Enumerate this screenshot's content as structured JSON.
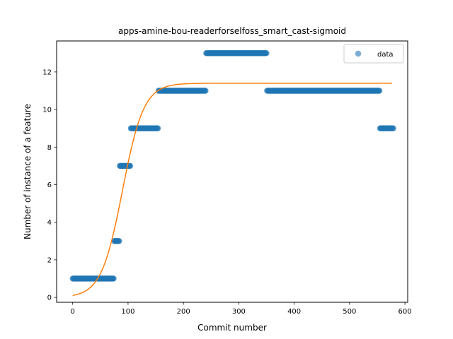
{
  "chart_data": {
    "type": "scatter",
    "title": "apps-amine-bou-readerforselfoss_smart_cast-sigmoid",
    "xlabel": "Commit number",
    "ylabel": "Number of instance of a feature",
    "xlim": [
      -29,
      605
    ],
    "ylim": [
      -0.26,
      13.65
    ],
    "xticks": [
      0,
      100,
      200,
      300,
      400,
      500,
      600
    ],
    "yticks": [
      0,
      2,
      4,
      6,
      8,
      10,
      12
    ],
    "grid": false,
    "legend_position": "top-right",
    "series": [
      {
        "name": "data",
        "kind": "scatter",
        "color": "#1f77b4",
        "segments": [
          {
            "x_start": 0,
            "x_end": 74,
            "y": 1
          },
          {
            "x_start": 75,
            "x_end": 84,
            "y": 3
          },
          {
            "x_start": 85,
            "x_end": 104,
            "y": 7
          },
          {
            "x_start": 105,
            "x_end": 154,
            "y": 9
          },
          {
            "x_start": 155,
            "x_end": 240,
            "y": 11
          },
          {
            "x_start": 241,
            "x_end": 350,
            "y": 13
          },
          {
            "x_start": 351,
            "x_end": 554,
            "y": 11
          },
          {
            "x_start": 555,
            "x_end": 579,
            "y": 9
          }
        ]
      },
      {
        "kind": "line",
        "color": "#ff7f0e",
        "model": "sigmoid",
        "params": {
          "L": 11.4,
          "k": 0.052,
          "x0": 90,
          "b": 0.0
        },
        "x_range": [
          0,
          577
        ]
      }
    ]
  }
}
